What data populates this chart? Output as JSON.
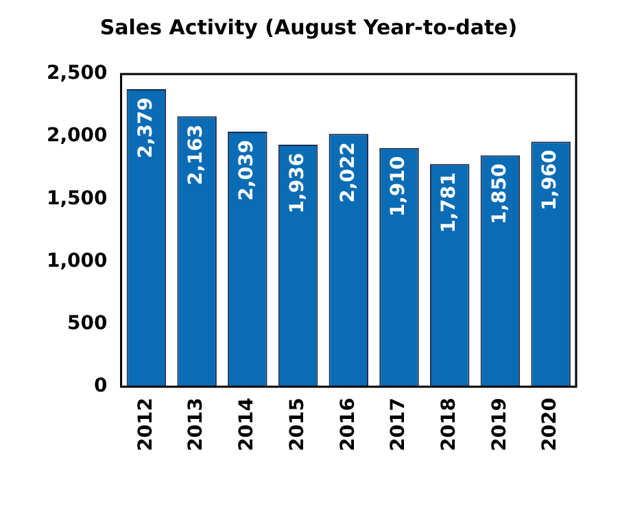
{
  "chart_data": {
    "type": "bar",
    "title": "Sales Activity (August Year-to-date)",
    "categories": [
      "2012",
      "2013",
      "2014",
      "2015",
      "2016",
      "2017",
      "2018",
      "2019",
      "2020"
    ],
    "values": [
      2379,
      2163,
      2039,
      1936,
      2022,
      1910,
      1781,
      1850,
      1960
    ],
    "color": "#0a6cb4",
    "ylim": [
      0,
      2500
    ],
    "yticks": [
      {
        "value": 0,
        "label": "0"
      },
      {
        "value": 500,
        "label": "500"
      },
      {
        "value": 1000,
        "label": "1,000"
      },
      {
        "value": 1500,
        "label": "1,500"
      },
      {
        "value": 2000,
        "label": "2,000"
      },
      {
        "value": 2500,
        "label": "2,500"
      }
    ],
    "value_labels": [
      "2,379",
      "2,163",
      "2,039",
      "1,936",
      "2,022",
      "1,910",
      "1,781",
      "1,850",
      "1,960"
    ],
    "grid": false,
    "legend": false
  }
}
